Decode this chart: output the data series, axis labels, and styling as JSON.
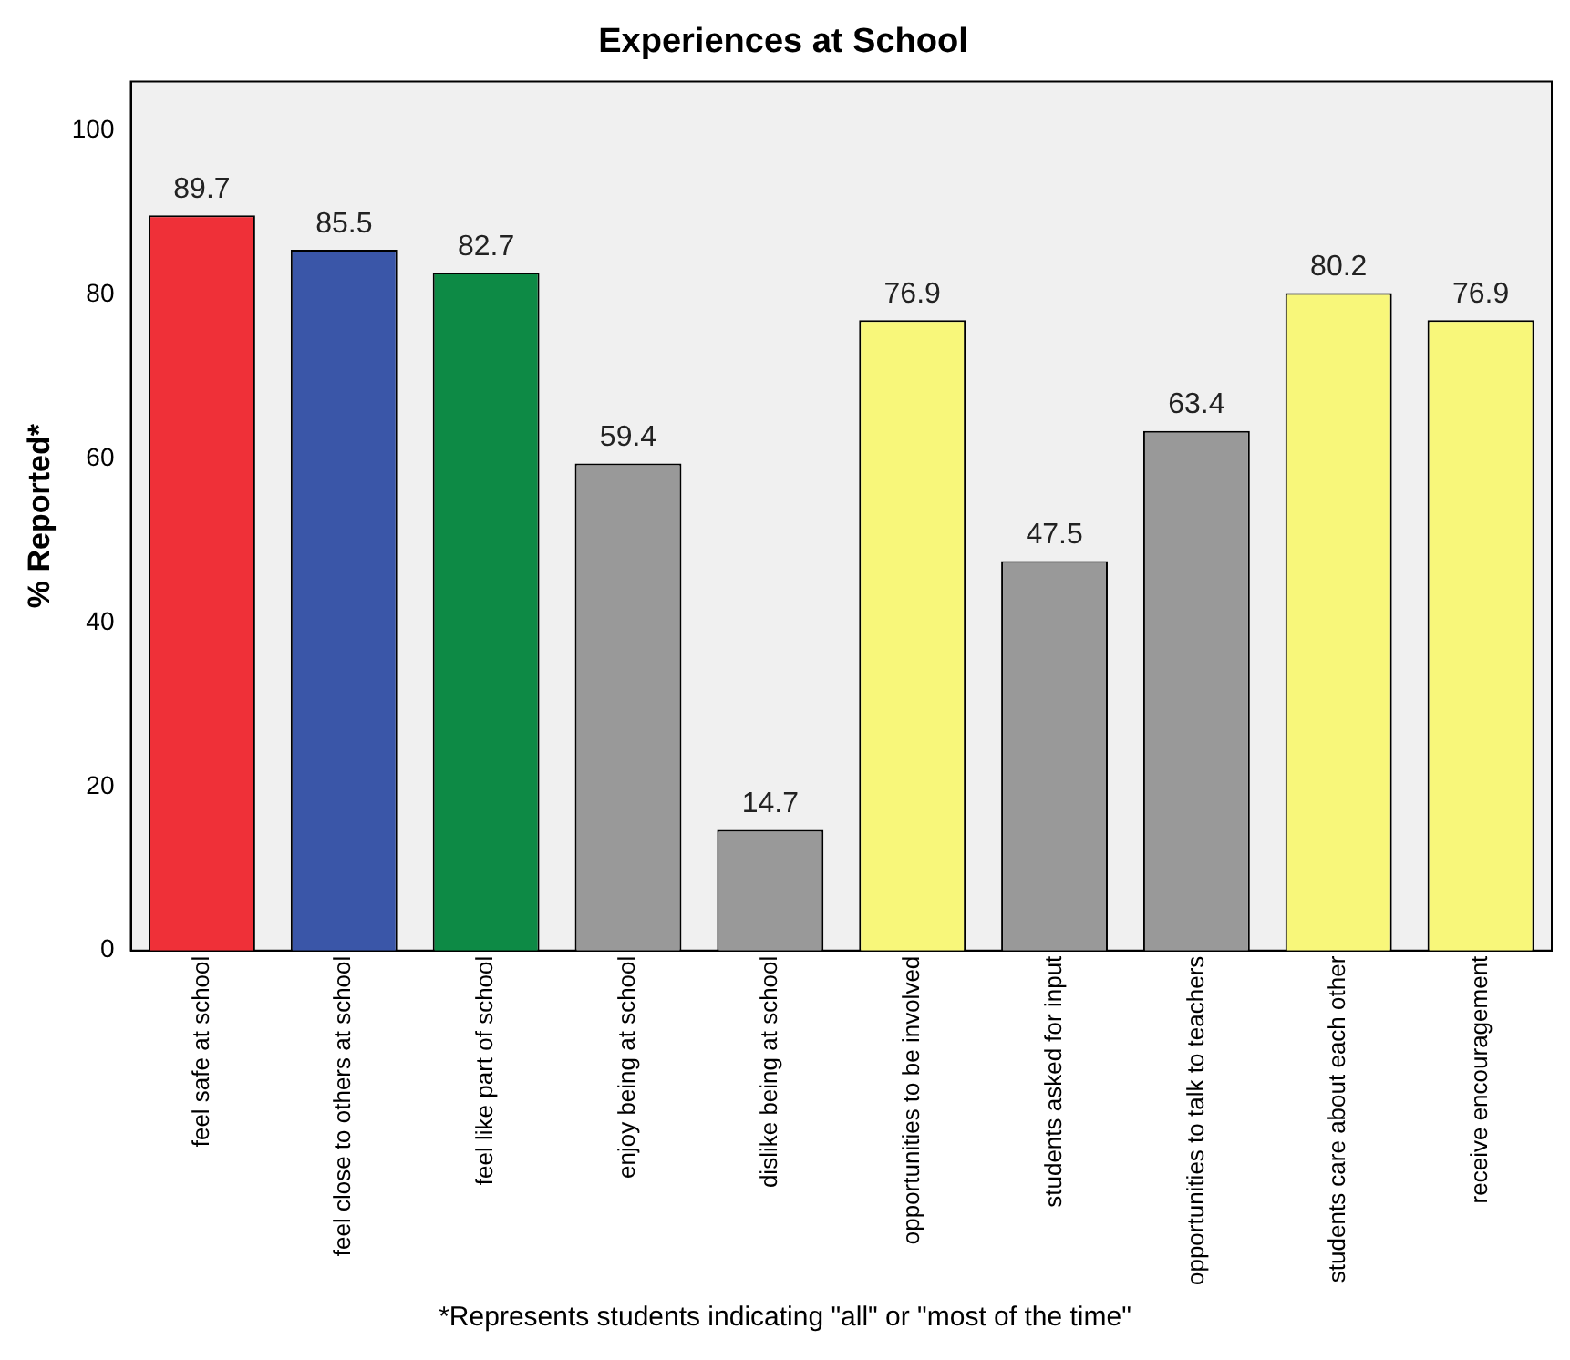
{
  "chart_data": {
    "type": "bar",
    "title": "Experiences at School",
    "ylabel": "% Reported*",
    "categories": [
      "feel safe at school",
      "feel close to others at school",
      "feel like part of school",
      "enjoy being at school",
      "dislike being at school",
      "opportunities to be involved",
      "students asked for input",
      "opportunities to talk to teachers",
      "students care about each other",
      "receive encouragement"
    ],
    "values": [
      89.7,
      85.5,
      82.7,
      59.4,
      14.7,
      76.9,
      47.5,
      63.4,
      80.2,
      76.9
    ],
    "colors": [
      "#ef3038",
      "#3a56a8",
      "#0d8a45",
      "#999999",
      "#999999",
      "#f8f77a",
      "#999999",
      "#999999",
      "#f8f77a",
      "#f8f77a"
    ],
    "ylim": [
      0,
      106
    ],
    "yticks": [
      0,
      20,
      40,
      60,
      80,
      100
    ],
    "grid": false,
    "legend": false,
    "data_labels": true,
    "annotations": [
      "*Represents students indicating \"all\" or \"most of the time\""
    ]
  }
}
